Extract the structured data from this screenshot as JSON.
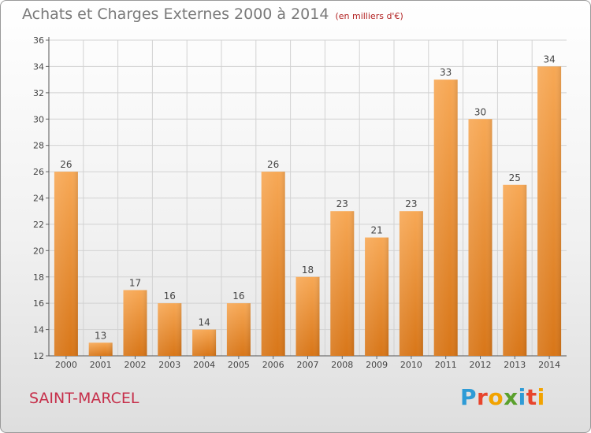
{
  "title": "Achats et Charges Externes 2000 à 2014",
  "subtitle": "(en milliers d'€)",
  "location": "SAINT-MARCEL",
  "brand": {
    "letters": [
      "P",
      "r",
      "o",
      "x",
      "i",
      "t",
      "i"
    ],
    "colors": [
      "#2e9bd6",
      "#e8442c",
      "#f2a300",
      "#5aa02c",
      "#2e9bd6",
      "#e8442c",
      "#f2a300"
    ]
  },
  "chart_data": {
    "type": "bar",
    "categories": [
      "2000",
      "2001",
      "2002",
      "2003",
      "2004",
      "2005",
      "2006",
      "2007",
      "2008",
      "2009",
      "2010",
      "2011",
      "2012",
      "2013",
      "2014"
    ],
    "values": [
      26,
      13,
      17,
      16,
      14,
      16,
      26,
      18,
      23,
      21,
      23,
      33,
      30,
      25,
      34
    ],
    "ylim": [
      12,
      36
    ],
    "yticks": [
      12,
      14,
      16,
      18,
      20,
      22,
      24,
      26,
      28,
      30,
      32,
      34,
      36
    ],
    "grid": true,
    "bar_color": "#f0963c"
  }
}
